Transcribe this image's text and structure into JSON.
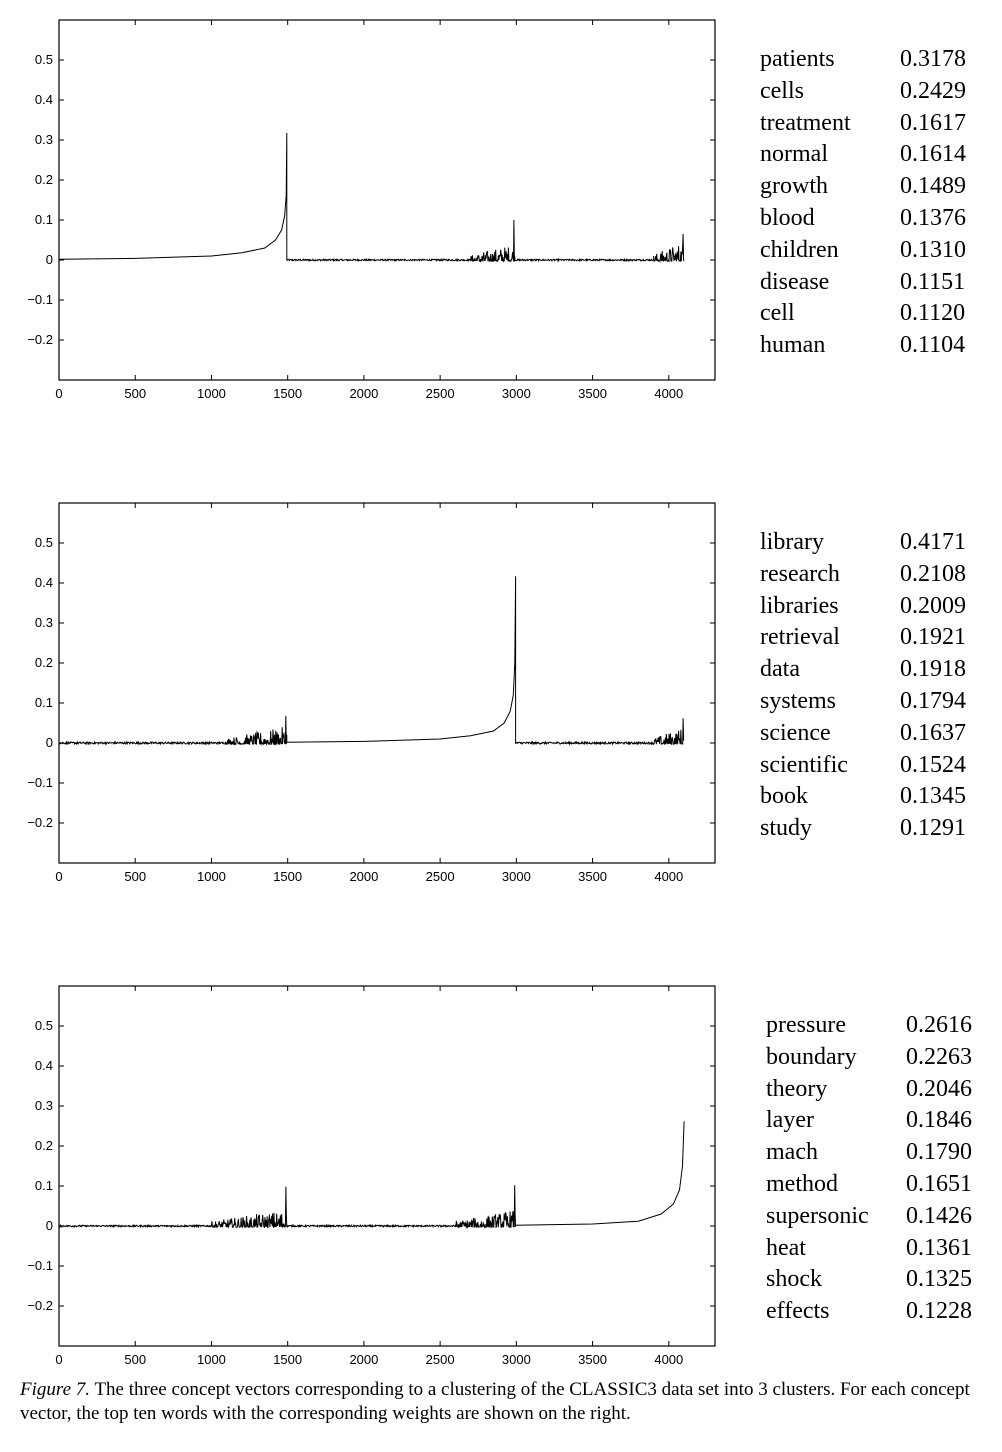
{
  "chart_data": [
    {
      "type": "line",
      "xlim": [
        0,
        4303
      ],
      "ylim": [
        -0.3,
        0.6
      ],
      "xticks": [
        0,
        500,
        1000,
        1500,
        2000,
        2500,
        3000,
        3500,
        4000
      ],
      "yticks": [
        -0.2,
        -0.1,
        0,
        0.1,
        0.2,
        0.3,
        0.4,
        0.5
      ],
      "ytick_labels": [
        "−0.2",
        "−0.1",
        "0",
        "0.1",
        "0.2",
        "0.3",
        "0.4",
        "0.5"
      ],
      "segments": [
        {
          "kind": "curve",
          "x": [
            0,
            500,
            1000,
            1200,
            1350,
            1420,
            1460,
            1480,
            1490,
            1494
          ],
          "y": [
            0.002,
            0.004,
            0.01,
            0.018,
            0.03,
            0.05,
            0.075,
            0.11,
            0.16,
            0.3178
          ]
        },
        {
          "kind": "noise",
          "x": [
            1494,
            2700
          ],
          "level": 0.004
        },
        {
          "kind": "noise",
          "x": [
            2700,
            2990
          ],
          "level": 0.03,
          "peak": 0.1
        },
        {
          "kind": "noise",
          "x": [
            2990,
            3900
          ],
          "level": 0.004
        },
        {
          "kind": "noise",
          "x": [
            3900,
            4100
          ],
          "level": 0.035,
          "peak": 0.065
        }
      ],
      "words": [
        {
          "word": "patients",
          "weight": "0.3178"
        },
        {
          "word": "cells",
          "weight": "0.2429"
        },
        {
          "word": "treatment",
          "weight": "0.1617"
        },
        {
          "word": "normal",
          "weight": "0.1614"
        },
        {
          "word": "growth",
          "weight": "0.1489"
        },
        {
          "word": "blood",
          "weight": "0.1376"
        },
        {
          "word": "children",
          "weight": "0.1310"
        },
        {
          "word": "disease",
          "weight": "0.1151"
        },
        {
          "word": "cell",
          "weight": "0.1120"
        },
        {
          "word": "human",
          "weight": "0.1104"
        }
      ]
    },
    {
      "type": "line",
      "xlim": [
        0,
        4303
      ],
      "ylim": [
        -0.3,
        0.6
      ],
      "xticks": [
        0,
        500,
        1000,
        1500,
        2000,
        2500,
        3000,
        3500,
        4000
      ],
      "yticks": [
        -0.2,
        -0.1,
        0,
        0.1,
        0.2,
        0.3,
        0.4,
        0.5
      ],
      "ytick_labels": [
        "−0.2",
        "−0.1",
        "0",
        "0.1",
        "0.2",
        "0.3",
        "0.4",
        "0.5"
      ],
      "segments": [
        {
          "kind": "noise",
          "x": [
            0,
            1100
          ],
          "level": 0.005
        },
        {
          "kind": "noise",
          "x": [
            1100,
            1494
          ],
          "level": 0.03,
          "peak": 0.068
        },
        {
          "kind": "curve",
          "x": [
            1494,
            2000,
            2500,
            2700,
            2850,
            2920,
            2960,
            2980,
            2990,
            2995
          ],
          "y": [
            0.002,
            0.004,
            0.01,
            0.018,
            0.03,
            0.05,
            0.08,
            0.12,
            0.2,
            0.4171
          ]
        },
        {
          "kind": "noise",
          "x": [
            2995,
            3900
          ],
          "level": 0.005
        },
        {
          "kind": "noise",
          "x": [
            3900,
            4100
          ],
          "level": 0.03,
          "peak": 0.062
        }
      ],
      "words": [
        {
          "word": "library",
          "weight": "0.4171"
        },
        {
          "word": "research",
          "weight": "0.2108"
        },
        {
          "word": "libraries",
          "weight": "0.2009"
        },
        {
          "word": "retrieval",
          "weight": "0.1921"
        },
        {
          "word": "data",
          "weight": "0.1918"
        },
        {
          "word": "systems",
          "weight": "0.1794"
        },
        {
          "word": "science",
          "weight": "0.1637"
        },
        {
          "word": "scientific",
          "weight": "0.1524"
        },
        {
          "word": "book",
          "weight": "0.1345"
        },
        {
          "word": "study",
          "weight": "0.1291"
        }
      ]
    },
    {
      "type": "line",
      "xlim": [
        0,
        4303
      ],
      "ylim": [
        -0.3,
        0.6
      ],
      "xticks": [
        0,
        500,
        1000,
        1500,
        2000,
        2500,
        3000,
        3500,
        4000
      ],
      "yticks": [
        -0.2,
        -0.1,
        0,
        0.1,
        0.2,
        0.3,
        0.4,
        0.5
      ],
      "ytick_labels": [
        "−0.2",
        "−0.1",
        "0",
        "0.1",
        "0.2",
        "0.3",
        "0.4",
        "0.5"
      ],
      "segments": [
        {
          "kind": "noise",
          "x": [
            0,
            1000
          ],
          "level": 0.004
        },
        {
          "kind": "noise",
          "x": [
            1000,
            1494
          ],
          "level": 0.03,
          "peak": 0.098
        },
        {
          "kind": "noise",
          "x": [
            1494,
            2600
          ],
          "level": 0.004
        },
        {
          "kind": "noise",
          "x": [
            2600,
            2995
          ],
          "level": 0.03,
          "peak": 0.102
        },
        {
          "kind": "curve",
          "x": [
            2995,
            3500,
            3800,
            3950,
            4030,
            4070,
            4090,
            4100
          ],
          "y": [
            0.002,
            0.005,
            0.012,
            0.03,
            0.055,
            0.09,
            0.15,
            0.2616
          ]
        }
      ],
      "words": [
        {
          "word": "pressure",
          "weight": "0.2616"
        },
        {
          "word": "boundary",
          "weight": "0.2263"
        },
        {
          "word": "theory",
          "weight": "0.2046"
        },
        {
          "word": "layer",
          "weight": "0.1846"
        },
        {
          "word": "mach",
          "weight": "0.1790"
        },
        {
          "word": "method",
          "weight": "0.1651"
        },
        {
          "word": "supersonic",
          "weight": "0.1426"
        },
        {
          "word": "heat",
          "weight": "0.1361"
        },
        {
          "word": "shock",
          "weight": "0.1325"
        },
        {
          "word": "effects",
          "weight": "0.1228"
        }
      ]
    }
  ],
  "caption": {
    "label": "Figure 7.",
    "text": "The three concept vectors corresponding to a clustering of the CLASSIC3 data set into 3 clusters. For each concept vector, the top ten words with the corresponding weights are shown on the right."
  }
}
